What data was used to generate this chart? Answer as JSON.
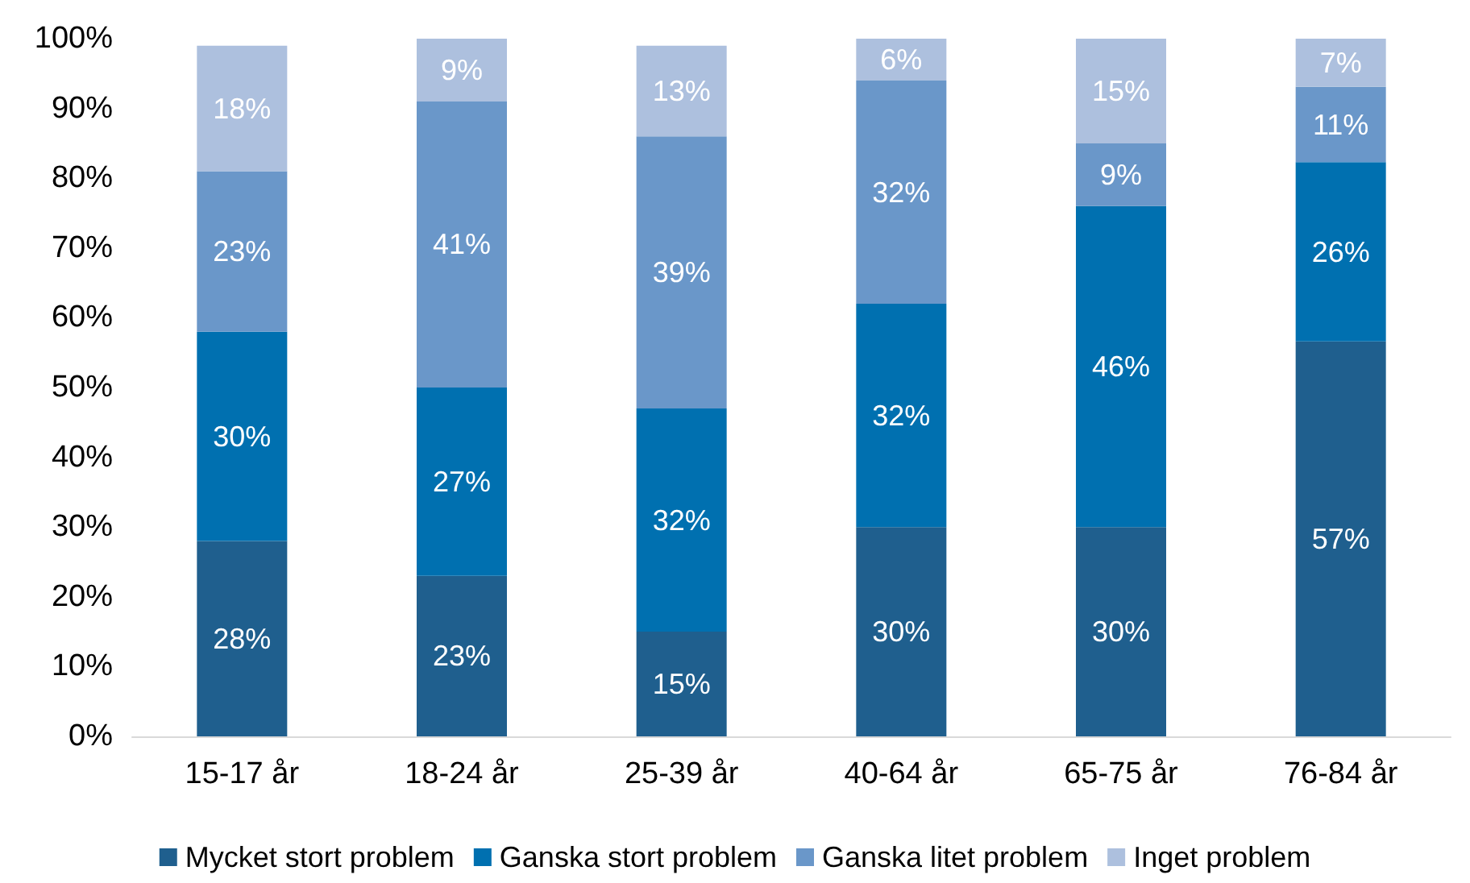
{
  "chart_data": {
    "type": "bar",
    "stacked": true,
    "categories": [
      "15-17 år",
      "18-24 år",
      "25-39 år",
      "40-64 år",
      "65-75 år",
      "76-84 år"
    ],
    "series": [
      {
        "name": "Mycket stort problem",
        "color": "#1f5f8e",
        "values": [
          28,
          23,
          15,
          30,
          30,
          56.6
        ],
        "value_labels": [
          "28%",
          "23%",
          "15%",
          "30%",
          "30%",
          "57%"
        ]
      },
      {
        "name": "Ganska stort problem",
        "color": "#0070b0",
        "values": [
          30,
          27,
          32,
          32,
          46,
          25.7
        ],
        "value_labels": [
          "30%",
          "27%",
          "32%",
          "32%",
          "46%",
          "26%"
        ]
      },
      {
        "name": "Ganska litet problem",
        "color": "#6a97c9",
        "values": [
          23,
          41,
          39,
          32,
          9,
          10.8
        ],
        "value_labels": [
          "23%",
          "41%",
          "39%",
          "32%",
          "9%",
          "11%"
        ]
      },
      {
        "name": "Inget problem",
        "color": "#adc0de",
        "values": [
          18,
          9,
          13,
          6,
          15,
          6.9
        ],
        "value_labels": [
          "18%",
          "9%",
          "13%",
          "6%",
          "15%",
          "7%"
        ]
      }
    ],
    "ylim": [
      0,
      100
    ],
    "yticks": [
      {
        "value": 0,
        "label": "0%"
      },
      {
        "value": 10,
        "label": "10%"
      },
      {
        "value": 20,
        "label": "20%"
      },
      {
        "value": 30,
        "label": "30%"
      },
      {
        "value": 40,
        "label": "40%"
      },
      {
        "value": 50,
        "label": "50%"
      },
      {
        "value": 60,
        "label": "60%"
      },
      {
        "value": 70,
        "label": "70%"
      },
      {
        "value": 80,
        "label": "80%"
      },
      {
        "value": 90,
        "label": "90%"
      },
      {
        "value": 100,
        "label": "100%"
      }
    ],
    "legend": "bottom",
    "grid": false
  }
}
